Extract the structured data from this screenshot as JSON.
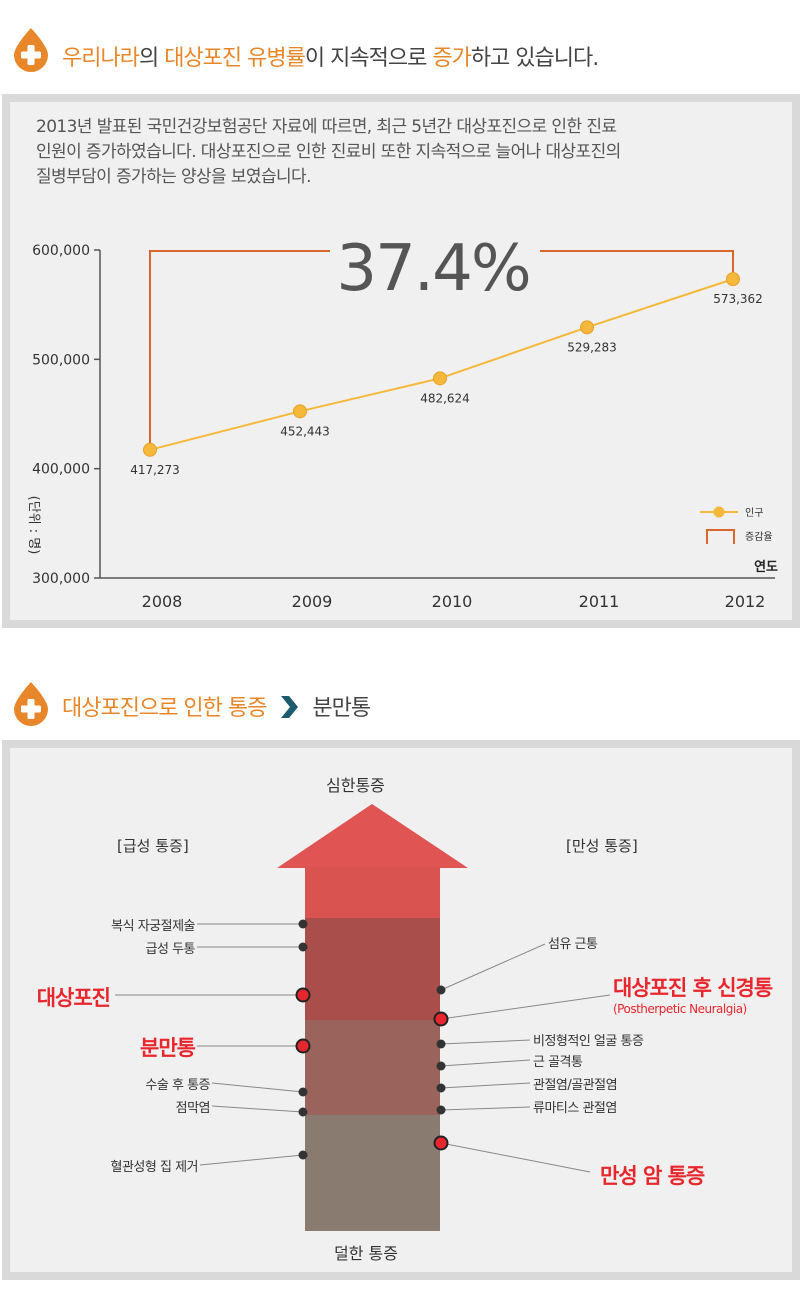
{
  "section1": {
    "heading_parts": [
      {
        "text": "우리나라",
        "hl": true
      },
      {
        "text": "의 ",
        "hl": false
      },
      {
        "text": "대상포진 유병률",
        "hl": true
      },
      {
        "text": "이 지속적으로 ",
        "hl": false
      },
      {
        "text": "증가",
        "hl": true
      },
      {
        "text": "하고 있습니다.",
        "hl": false
      }
    ],
    "intro_lines": [
      "2013년 발표된 국민건강보험공단 자료에 따르면, 최근 5년간 대상포진으로 인한 진료",
      "인원이 증가하였습니다. 대상포진으로 인한 진료비 또한 지속적으로 늘어나 대상포진의",
      "질병부담이 증가하는 양상을 보였습니다."
    ]
  },
  "chart_data": {
    "type": "line",
    "categories": [
      "2008",
      "2009",
      "2010",
      "2011",
      "2012"
    ],
    "series": [
      {
        "name": "인구",
        "values": [
          417273,
          452443,
          482624,
          529283,
          573362
        ]
      }
    ],
    "data_labels": [
      "417,273",
      "452,443",
      "482,624",
      "529,283",
      "573,362"
    ],
    "y_ticks": [
      300000,
      400000,
      500000,
      600000
    ],
    "y_tick_labels": [
      "300,000",
      "400,000",
      "500,000",
      "600,000"
    ],
    "ylim": [
      300000,
      600000
    ],
    "ylabel": "(단위 : 명)",
    "xlabel": "연도",
    "annotation": "37.4%",
    "legend": [
      {
        "name": "인구",
        "kind": "line-marker"
      },
      {
        "name": "증감율",
        "kind": "bracket"
      }
    ],
    "legend_position": "bottom-right",
    "grid": false,
    "colors": {
      "line": "#f5b83a",
      "marker": "#f5b83a",
      "bracket": "#d9662a"
    }
  },
  "section2": {
    "heading_orange": "대상포진으로 인한 통증",
    "heading_gray": "분만통",
    "top_label": "심한통증",
    "bottom_label": "덜한 통증",
    "acute_title": "[급성 통증]",
    "chronic_title": "[만성 통증]",
    "left_items": [
      "복식 자궁절제술",
      "급성 두통",
      "대상포진",
      "분만통",
      "수술 후 통증",
      "점막염",
      "혈관성형 집 제거"
    ],
    "right_items": [
      "섬유 근통",
      "대상포진 후 신경통",
      "(Postherpetic Neuralgia)",
      "비정형적인 얼굴 통증",
      "근 골격통",
      "관절염/골관절염",
      "류마티스 관절염",
      "만성 암 통증"
    ],
    "colors": {
      "accent": "#e8862a",
      "red": "#e8262d",
      "chevron": "#1e5a6e"
    }
  }
}
